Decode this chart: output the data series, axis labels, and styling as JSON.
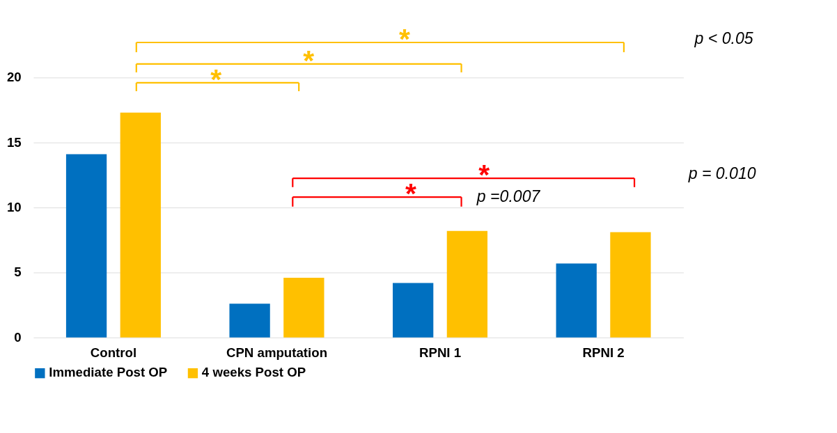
{
  "chart_data": {
    "type": "bar",
    "categories": [
      "Control",
      "CPN amputation",
      "RPNI 1",
      "RPNI 2"
    ],
    "series": [
      {
        "name": "Immediate Post OP",
        "color": "#0070c0",
        "values": [
          14.1,
          2.6,
          4.2,
          5.7
        ]
      },
      {
        "name": "4 weeks Post OP",
        "color": "#ffc000",
        "values": [
          17.3,
          4.6,
          8.2,
          8.1
        ]
      }
    ],
    "ylim": [
      0,
      20
    ],
    "yticks": [
      0,
      5,
      10,
      15,
      20
    ],
    "grid": "y",
    "legend": "bottom",
    "annotations": [
      "*",
      "*",
      "*",
      "p < 0.05",
      "*",
      "p =0.007",
      "*",
      "p = 0.010"
    ]
  }
}
